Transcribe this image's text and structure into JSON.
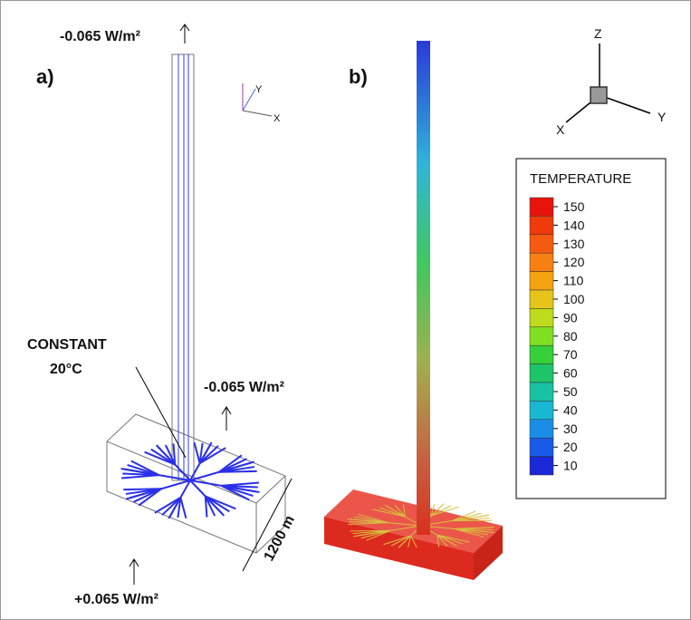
{
  "panel_a": {
    "label": "a)",
    "top_flux": "-0.065 W/m²",
    "constant_line1": "CONSTANT",
    "constant_line2": "20°C",
    "side_flux": "-0.065 W/m²",
    "bottom_flux": "+0.065 W/m²",
    "dimension": "1200 m",
    "axis_y": "Y",
    "axis_x": "X"
  },
  "panel_b": {
    "label": "b)",
    "axis_z": "Z",
    "axis_x": "X",
    "axis_y": "Y",
    "legend": {
      "title": "TEMPERATURE",
      "levels": [
        150,
        140,
        130,
        120,
        110,
        100,
        90,
        80,
        70,
        60,
        50,
        40,
        30,
        20,
        10
      ],
      "colors": [
        "#e8140c",
        "#ef3a0c",
        "#f45a10",
        "#f88012",
        "#f6a312",
        "#e6c41a",
        "#bedb1c",
        "#7ee020",
        "#36d03a",
        "#1ec46a",
        "#18c2a2",
        "#18b8d2",
        "#1a8ee6",
        "#1a5ae8",
        "#1a28d8"
      ]
    }
  }
}
